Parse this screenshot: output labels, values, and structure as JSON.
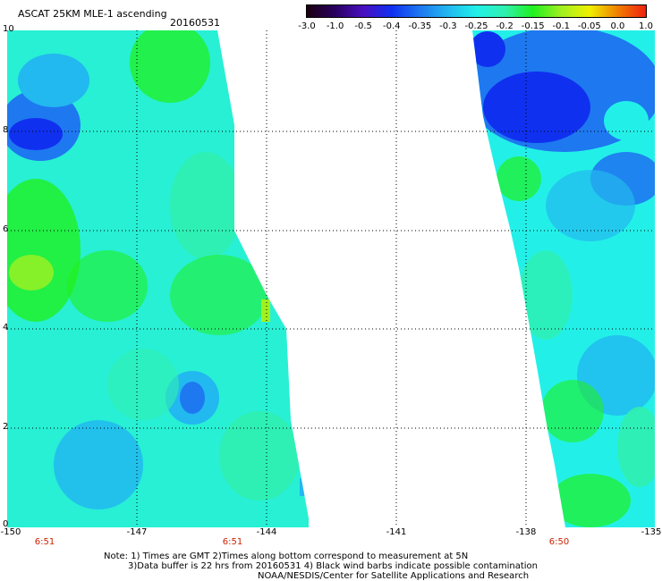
{
  "header": {
    "title": "ASCAT 25KM MLE-1 ascending",
    "date": "20160531"
  },
  "colorbar": {
    "labels": [
      "-3.0",
      "-1.0",
      "-0.5",
      "-0.4",
      "-0.35",
      "-0.3",
      "-0.25",
      "-0.2",
      "-0.15",
      "-0.1",
      "-0.05",
      "0.0",
      "1.0"
    ],
    "colors": [
      "#1a0010",
      "#2a0060",
      "#4a10c0",
      "#1030f0",
      "#1e78f0",
      "#22b8f0",
      "#22f0e8",
      "#30f0b0",
      "#20f020",
      "#a0f020",
      "#f0f000",
      "#f08000",
      "#f02010"
    ]
  },
  "map": {
    "lat_labels": [
      "10",
      "8",
      "6",
      "4",
      "2",
      "0"
    ],
    "lon_labels": [
      "-150",
      "-147",
      "-144",
      "-141",
      "-138",
      "-135"
    ],
    "swath_times": [
      "6:51",
      "6:51",
      "6:50"
    ]
  },
  "notes": {
    "line1": "Note: 1) Times are GMT 2)Times along bottom correspond to measurement at 5N",
    "line2": "3)Data buffer is 22 hrs from 20160531 4) Black wind barbs indicate possible contamination",
    "line3": "NOAA/NESDIS/Center for Satellite Applications and Research"
  }
}
